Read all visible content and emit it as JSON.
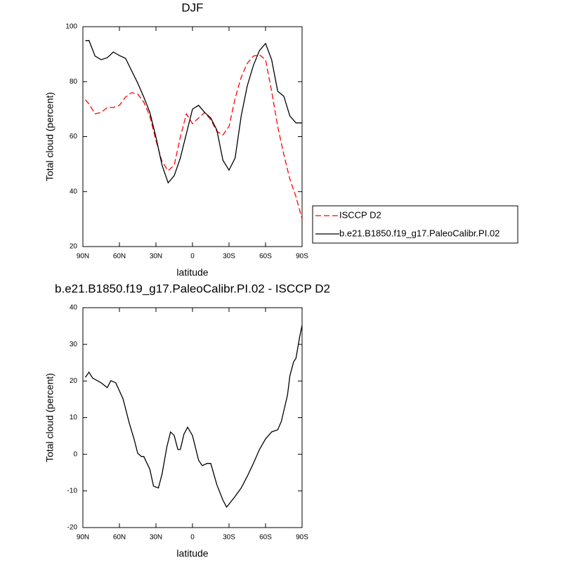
{
  "chart_data": [
    {
      "type": "line",
      "title": "DJF",
      "x_label": "latitude",
      "y_label": "Total cloud (percent)",
      "x": [
        88,
        85,
        80,
        75,
        70,
        65,
        60,
        55,
        50,
        45,
        40,
        35,
        30,
        25,
        20,
        15,
        10,
        5,
        0,
        -5,
        -10,
        -15,
        -20,
        -25,
        -30,
        -35,
        -40,
        -45,
        -50,
        -55,
        -60,
        -65,
        -70,
        -75,
        -80,
        -85,
        -90
      ],
      "series": [
        {
          "name": "ISCCP D2",
          "color": "#ff0000",
          "dashed": true,
          "values": [
            73.4,
            71.9,
            68.3,
            68.8,
            70.6,
            70.6,
            71.4,
            74.4,
            76,
            75.5,
            72.6,
            67.5,
            58.6,
            50.9,
            47.6,
            49.6,
            59.8,
            68.3,
            64.7,
            66.8,
            68.8,
            66.2,
            61.9,
            60.6,
            63.7,
            73.9,
            81.6,
            86.7,
            89.3,
            89.8,
            88,
            76.5,
            63.7,
            53.5,
            44.5,
            38.1,
            30
          ]
        },
        {
          "name": "b.e21.B1850.f19_g17.PaleoCalibr.PI.02",
          "color": "#000000",
          "dashed": false,
          "values": [
            94.9,
            95,
            89.3,
            88,
            88.7,
            90.8,
            89.5,
            88.5,
            84,
            79.5,
            74.4,
            68.8,
            59.8,
            49.6,
            43.2,
            45.8,
            52.2,
            61.1,
            70,
            71.4,
            68.8,
            66.8,
            62.4,
            51.4,
            47.8,
            52.2,
            67.5,
            78.5,
            85.9,
            91.3,
            93.9,
            88,
            76.5,
            74.7,
            67.5,
            65,
            65
          ]
        }
      ],
      "xlim": [
        90,
        -90
      ],
      "xticks": [
        {
          "value": 90,
          "label": "90N"
        },
        {
          "value": 60,
          "label": "60N"
        },
        {
          "value": 30,
          "label": "30N"
        },
        0,
        {
          "value": -30,
          "label": "30S"
        },
        {
          "value": -60,
          "label": "60S"
        },
        {
          "value": -90,
          "label": "90S"
        }
      ],
      "ylim": [
        20,
        100
      ],
      "yticks": [
        20,
        40,
        60,
        80,
        100
      ],
      "legend_position": "right"
    },
    {
      "type": "line",
      "title": "b.e21.B1850.f19_g17.PaleoCalibr.PI.02 - ISCCP D2",
      "x_label": "latitude",
      "y_label": "Total cloud (percent)",
      "x": [
        88,
        85,
        82,
        75,
        70,
        67,
        63,
        57,
        52,
        48,
        45,
        42,
        40,
        35,
        32,
        28,
        25,
        21,
        18,
        15,
        12,
        10,
        7,
        4,
        0,
        -5,
        -8,
        -12,
        -15,
        -20,
        -25,
        -28,
        -30,
        -35,
        -40,
        -45,
        -50,
        -55,
        -60,
        -65,
        -70,
        -73,
        -78,
        -80,
        -83,
        -85,
        -88,
        -90
      ],
      "series": [
        {
          "color": "#000000",
          "dashed": false,
          "values": [
            21,
            22.4,
            20.8,
            19.5,
            18.2,
            20.1,
            19.5,
            15.1,
            8.6,
            4.2,
            0.3,
            -0.6,
            -0.6,
            -4.1,
            -8.7,
            -9.2,
            -5.4,
            2.1,
            6.1,
            5.1,
            1.3,
            1.3,
            5.5,
            7.4,
            5.1,
            -1.6,
            -3.1,
            -2.5,
            -2.5,
            -8.3,
            -12.5,
            -14.4,
            -13.6,
            -11.5,
            -9.2,
            -6,
            -2.5,
            1.3,
            4.2,
            6.1,
            6.7,
            9,
            16.1,
            21.4,
            25.2,
            26.2,
            32,
            35.2
          ]
        }
      ],
      "xlim": [
        90,
        -90
      ],
      "xticks": [
        {
          "value": 90,
          "label": "90N"
        },
        {
          "value": 60,
          "label": "60N"
        },
        {
          "value": 30,
          "label": "30N"
        },
        0,
        {
          "value": -30,
          "label": "30S"
        },
        {
          "value": -60,
          "label": "60S"
        },
        {
          "value": -90,
          "label": "90S"
        }
      ],
      "ylim": [
        -20,
        40
      ],
      "yticks": [
        -20,
        -10,
        0,
        10,
        20,
        30,
        40
      ]
    }
  ]
}
